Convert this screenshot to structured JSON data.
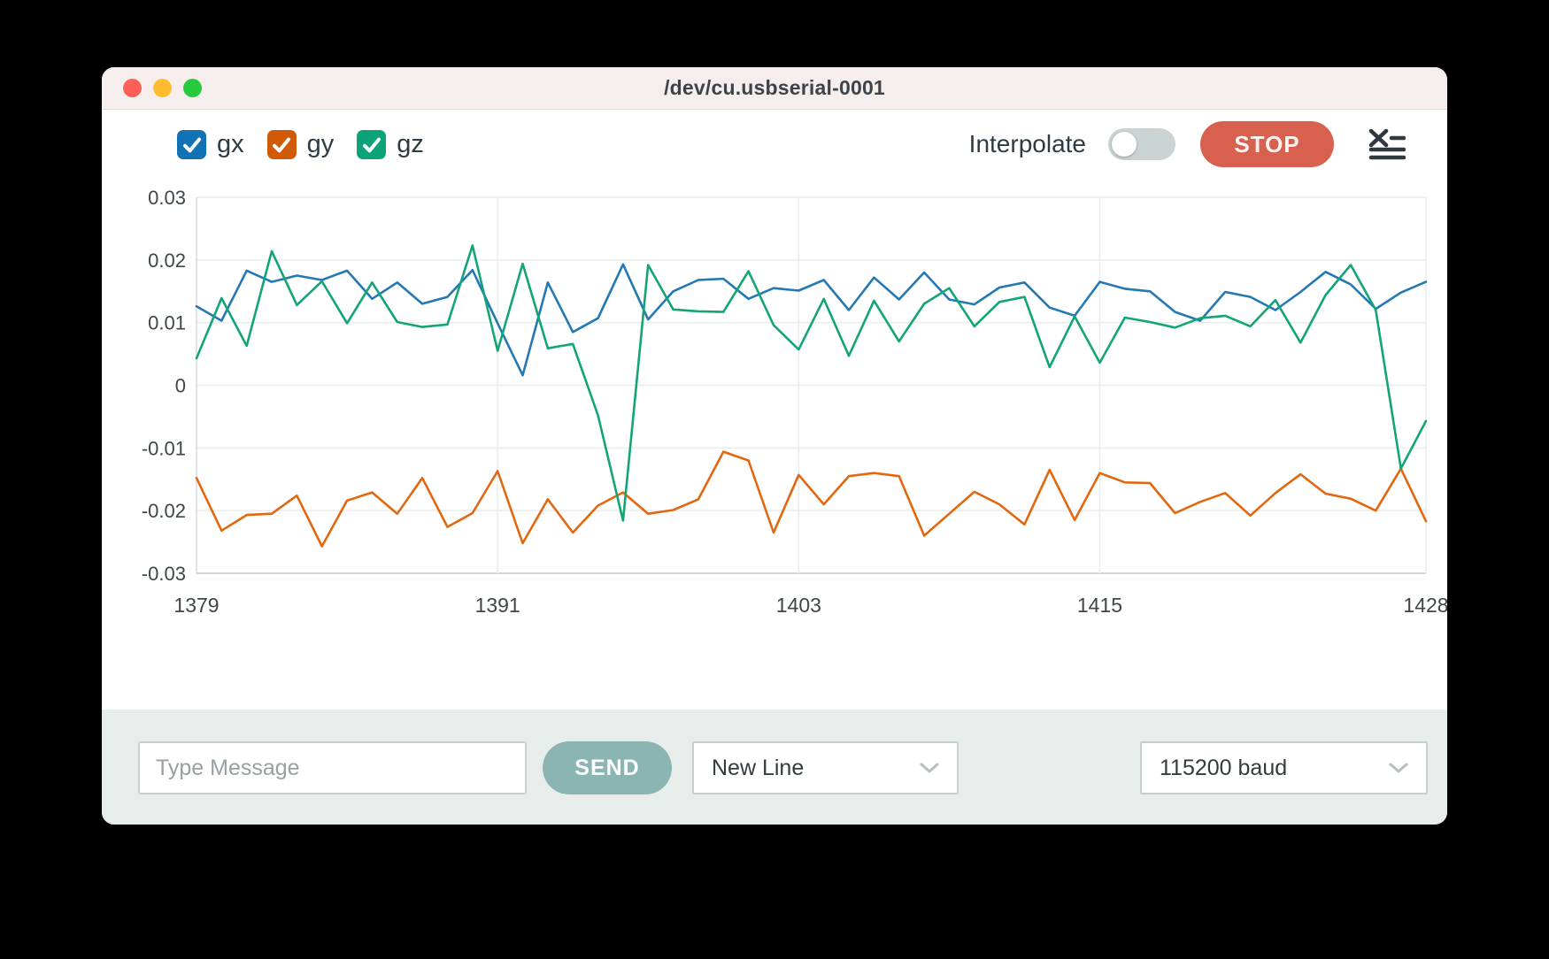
{
  "window_title": "/dev/cu.usbserial-0001",
  "legend": {
    "items": [
      {
        "label": "gx",
        "color": "#1173b4",
        "checked": true
      },
      {
        "label": "gy",
        "color": "#d15a08",
        "checked": true
      },
      {
        "label": "gz",
        "color": "#0ba377",
        "checked": true
      }
    ]
  },
  "controls": {
    "interpolate_label": "Interpolate",
    "interpolate_state": "off",
    "stop_label": "STOP"
  },
  "chart_data": {
    "type": "line",
    "title": "",
    "xlabel": "",
    "ylabel": "",
    "xlim": [
      1379,
      1428
    ],
    "ylim": [
      -0.03,
      0.03
    ],
    "xticks": [
      1379,
      1391,
      1403,
      1415,
      1428
    ],
    "yticks": [
      0.03,
      0.02,
      0.01,
      0,
      -0.01,
      -0.02,
      -0.03
    ],
    "grid": true,
    "legend_position": "top-left",
    "x": [
      1379,
      1380,
      1381,
      1382,
      1383,
      1384,
      1385,
      1386,
      1387,
      1388,
      1389,
      1390,
      1391,
      1392,
      1393,
      1394,
      1395,
      1396,
      1397,
      1398,
      1399,
      1400,
      1401,
      1402,
      1403,
      1404,
      1405,
      1406,
      1407,
      1408,
      1409,
      1410,
      1411,
      1412,
      1413,
      1414,
      1415,
      1416,
      1417,
      1418,
      1419,
      1420,
      1421,
      1422,
      1423,
      1424,
      1425,
      1426,
      1427,
      1428
    ],
    "series": [
      {
        "name": "gx",
        "color": "#2478b4",
        "values": [
          0.0126,
          0.0103,
          0.0183,
          0.0165,
          0.0175,
          0.0168,
          0.0183,
          0.0138,
          0.0164,
          0.013,
          0.0141,
          0.0184,
          0.0099,
          0.0016,
          0.0164,
          0.0085,
          0.0107,
          0.0193,
          0.0105,
          0.015,
          0.0168,
          0.017,
          0.0138,
          0.0155,
          0.0151,
          0.0168,
          0.012,
          0.0172,
          0.0137,
          0.018,
          0.0137,
          0.0129,
          0.0156,
          0.0164,
          0.0124,
          0.0111,
          0.0165,
          0.0154,
          0.015,
          0.0117,
          0.0103,
          0.0149,
          0.0141,
          0.012,
          0.0149,
          0.0181,
          0.0161,
          0.0122,
          0.0148,
          0.0165
        ]
      },
      {
        "name": "gy",
        "color": "#e2670f",
        "values": [
          -0.0148,
          -0.0232,
          -0.0207,
          -0.0205,
          -0.0176,
          -0.0257,
          -0.0184,
          -0.0171,
          -0.0205,
          -0.0148,
          -0.0226,
          -0.0204,
          -0.0137,
          -0.0252,
          -0.0182,
          -0.0235,
          -0.0192,
          -0.0171,
          -0.0205,
          -0.0199,
          -0.0182,
          -0.0106,
          -0.012,
          -0.0235,
          -0.0143,
          -0.019,
          -0.0145,
          -0.014,
          -0.0145,
          -0.024,
          -0.0205,
          -0.017,
          -0.019,
          -0.0222,
          -0.0135,
          -0.0215,
          -0.014,
          -0.0155,
          -0.0156,
          -0.0204,
          -0.0186,
          -0.0172,
          -0.0208,
          -0.0172,
          -0.0142,
          -0.0173,
          -0.0181,
          -0.02,
          -0.0133,
          -0.0217
        ]
      },
      {
        "name": "gz",
        "color": "#13a478",
        "values": [
          0.0043,
          0.0139,
          0.0063,
          0.0214,
          0.0128,
          0.0166,
          0.0099,
          0.0164,
          0.0101,
          0.0093,
          0.0097,
          0.0223,
          0.0055,
          0.0194,
          0.0059,
          0.0066,
          -0.0048,
          -0.0216,
          0.0192,
          0.0121,
          0.0118,
          0.0117,
          0.0182,
          0.0096,
          0.0057,
          0.0138,
          0.0047,
          0.0135,
          0.007,
          0.013,
          0.0155,
          0.0094,
          0.0133,
          0.0141,
          0.0029,
          0.011,
          0.0036,
          0.0108,
          0.0101,
          0.0092,
          0.0107,
          0.0111,
          0.0094,
          0.0136,
          0.0068,
          0.0144,
          0.0192,
          0.012,
          -0.0133,
          -0.0057
        ]
      }
    ]
  },
  "bottom_bar": {
    "message_placeholder": "Type Message",
    "send_label": "SEND",
    "line_ending_value": "New Line",
    "baud_value": "115200 baud"
  }
}
